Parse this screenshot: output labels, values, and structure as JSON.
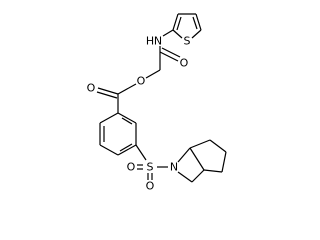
{
  "atoms": [
    {
      "label": "H"
    },
    {
      "label": "N"
    },
    {
      "label": "O"
    },
    {
      "label": "S"
    },
    {
      "label": "O"
    },
    {
      "label": "O"
    },
    {
      "label": "O"
    },
    {
      "label": "S"
    },
    {
      "label": "O"
    },
    {
      "label": "N"
    }
  ]
}
